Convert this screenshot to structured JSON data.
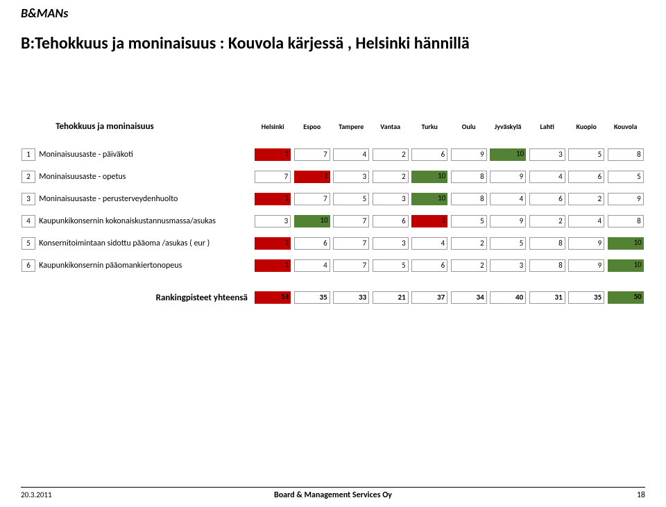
{
  "logo": {
    "b": "B",
    "amp": "&",
    "mans": "MANs"
  },
  "title": "B:Tehokkuus ja moninaisuus : Kouvola kärjessä , Helsinki hännillä",
  "table": {
    "heading": "Tehokkuus ja moninaisuus",
    "cities": [
      "Helsinki",
      "Espoo",
      "Tampere",
      "Vantaa",
      "Turku",
      "Oulu",
      "Jyväskylä",
      "Lahti",
      "Kuopio",
      "Kouvola"
    ],
    "colors": {
      "red": "#c00000",
      "green": "#548235",
      "white": "#ffffff"
    },
    "rows": [
      {
        "n": "1",
        "label": "Moninaisuusaste - päiväkoti",
        "vals": [
          "1",
          "7",
          "4",
          "2",
          "6",
          "9",
          "10",
          "3",
          "5",
          "8"
        ],
        "bg": [
          "red",
          "white",
          "white",
          "white",
          "white",
          "white",
          "green",
          "white",
          "white",
          "white"
        ],
        "bd": [
          false,
          true,
          true,
          true,
          true,
          true,
          false,
          true,
          true,
          true
        ]
      },
      {
        "n": "2",
        "label": "Moninaisuusaste - opetus",
        "vals": [
          "7",
          "1",
          "3",
          "2",
          "10",
          "8",
          "9",
          "4",
          "6",
          "5"
        ],
        "bg": [
          "white",
          "red",
          "white",
          "white",
          "green",
          "white",
          "white",
          "white",
          "white",
          "white"
        ],
        "bd": [
          true,
          false,
          true,
          true,
          false,
          true,
          true,
          true,
          true,
          true
        ]
      },
      {
        "n": "3",
        "label": "Moninaisuusaste - perusterveydenhuolto",
        "vals": [
          "1",
          "7",
          "5",
          "3",
          "10",
          "8",
          "4",
          "6",
          "2",
          "9"
        ],
        "bg": [
          "red",
          "white",
          "white",
          "white",
          "green",
          "white",
          "white",
          "white",
          "white",
          "white"
        ],
        "bd": [
          false,
          true,
          true,
          true,
          false,
          true,
          true,
          true,
          true,
          true
        ]
      },
      {
        "n": "4",
        "label": "Kaupunkikonsernin kokonaiskustannusmassa/asukas",
        "vals": [
          "3",
          "10",
          "7",
          "6",
          "1",
          "5",
          "9",
          "2",
          "4",
          "8"
        ],
        "bg": [
          "white",
          "green",
          "white",
          "white",
          "red",
          "white",
          "white",
          "white",
          "white",
          "white"
        ],
        "bd": [
          true,
          false,
          true,
          true,
          false,
          true,
          true,
          true,
          true,
          true
        ]
      },
      {
        "n": "5",
        "label": "Konsernitoimintaan sidottu pääoma /asukas ( eur )",
        "vals": [
          "1",
          "6",
          "7",
          "3",
          "4",
          "2",
          "5",
          "8",
          "9",
          "10"
        ],
        "bg": [
          "red",
          "white",
          "white",
          "white",
          "white",
          "white",
          "white",
          "white",
          "white",
          "green"
        ],
        "bd": [
          false,
          true,
          true,
          true,
          true,
          true,
          true,
          true,
          true,
          false
        ]
      },
      {
        "n": "6",
        "label": "Kaupunkikonsernin pääomankiertonopeus",
        "vals": [
          "1",
          "4",
          "7",
          "5",
          "6",
          "2",
          "3",
          "8",
          "9",
          "10"
        ],
        "bg": [
          "red",
          "white",
          "white",
          "white",
          "white",
          "white",
          "white",
          "white",
          "white",
          "green"
        ],
        "bd": [
          false,
          true,
          true,
          true,
          true,
          true,
          true,
          true,
          true,
          false
        ]
      }
    ],
    "total": {
      "label": "Rankingpisteet yhteensä",
      "vals": [
        "14",
        "35",
        "33",
        "21",
        "37",
        "34",
        "40",
        "31",
        "35",
        "50"
      ],
      "bg": [
        "red",
        "white",
        "white",
        "white",
        "white",
        "white",
        "white",
        "white",
        "white",
        "green"
      ],
      "bd": [
        false,
        true,
        true,
        true,
        true,
        true,
        true,
        true,
        true,
        false
      ]
    }
  },
  "footer": {
    "date": "20.3.2011",
    "company": "Board & Management Services Oy",
    "page": "18"
  }
}
